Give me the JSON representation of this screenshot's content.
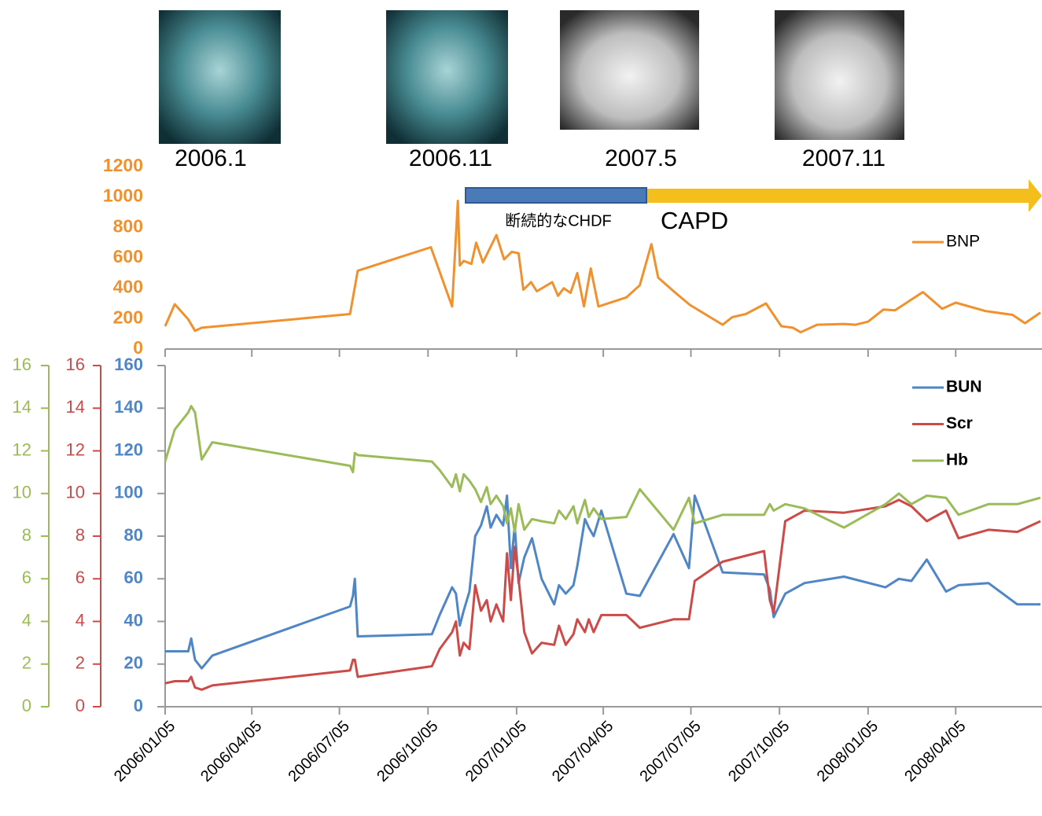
{
  "images": [
    {
      "label": "2006.1"
    },
    {
      "label": "2006.11"
    },
    {
      "label": "2007.5"
    },
    {
      "label": "2007.11"
    }
  ],
  "chart_data": [
    {
      "type": "line",
      "legend": "upper right",
      "annotations": [
        "断続的なCHDF",
        "CAPD"
      ],
      "xlim": [
        "2006/01/05",
        "2008/07/02"
      ],
      "ylim": [
        0,
        1200
      ],
      "yticks": [
        0,
        200,
        400,
        600,
        800,
        1000,
        1200
      ],
      "x": [
        "2006/01/05",
        "2006/01/15",
        "2006/01/29",
        "2006/02/05",
        "2006/02/12",
        "2006/07/16",
        "2006/07/24",
        "2006/10/08",
        "2006/10/30",
        "2006/11/05",
        "2006/11/07",
        "2006/11/11",
        "2006/11/19",
        "2006/11/24",
        "2006/12/01",
        "2006/12/15",
        "2006/12/23",
        "2006/12/31",
        "2007/01/07",
        "2007/01/12",
        "2007/01/20",
        "2007/01/26",
        "2007/02/11",
        "2007/02/17",
        "2007/02/23",
        "2007/03/02",
        "2007/03/09",
        "2007/03/16",
        "2007/03/23",
        "2007/03/31",
        "2007/04/29",
        "2007/05/13",
        "2007/05/25",
        "2007/06/01",
        "2007/06/19",
        "2007/07/04",
        "2007/08/07",
        "2007/08/17",
        "2007/08/31",
        "2007/09/21",
        "2007/10/07",
        "2007/10/19",
        "2007/10/27",
        "2007/11/13",
        "2007/12/11",
        "2007/12/23",
        "2008/01/05",
        "2008/01/21",
        "2008/02/02",
        "2008/03/02",
        "2008/03/22",
        "2008/04/05",
        "2008/05/06",
        "2008/06/03",
        "2008/06/16",
        "2008/07/02"
      ],
      "series": [
        {
          "name": "BNP",
          "color": "#f0912e",
          "values": [
            150,
            295,
            195,
            120,
            140,
            230,
            515,
            670,
            280,
            975,
            550,
            580,
            560,
            700,
            570,
            750,
            590,
            640,
            630,
            390,
            440,
            380,
            440,
            350,
            400,
            370,
            500,
            280,
            530,
            280,
            340,
            420,
            690,
            470,
            370,
            290,
            160,
            210,
            230,
            300,
            150,
            140,
            110,
            160,
            165,
            160,
            180,
            260,
            255,
            375,
            265,
            305,
            250,
            225,
            170,
            240
          ]
        }
      ]
    },
    {
      "type": "line",
      "legend": "upper right",
      "xlim": [
        "2006/01/05",
        "2008/07/02"
      ],
      "xticks": [
        "2006/01/05",
        "2006/04/05",
        "2006/07/05",
        "2006/10/05",
        "2007/01/05",
        "2007/04/05",
        "2007/07/05",
        "2007/10/05",
        "2008/01/05",
        "2008/04/05"
      ],
      "ylim": [
        0,
        160
      ],
      "yticks": [
        0,
        20,
        40,
        60,
        80,
        100,
        120,
        140,
        160
      ],
      "y2lim": [
        0,
        16
      ],
      "y2ticks": [
        0,
        2,
        4,
        6,
        8,
        10,
        12,
        14,
        16
      ],
      "y3lim": [
        0,
        16
      ],
      "y3ticks": [
        0,
        2,
        4,
        6,
        8,
        10,
        12,
        14,
        16
      ],
      "x": [
        "2006/01/05",
        "2006/01/15",
        "2006/01/29",
        "2006/02/01",
        "2006/02/05",
        "2006/02/12",
        "2006/02/23",
        "2006/07/16",
        "2006/07/19",
        "2006/07/21",
        "2006/07/24",
        "2006/10/09",
        "2006/10/17",
        "2006/10/30",
        "2006/11/03",
        "2006/11/07",
        "2006/11/11",
        "2006/11/17",
        "2006/11/23",
        "2006/11/29",
        "2006/12/05",
        "2006/12/09",
        "2006/12/15",
        "2006/12/22",
        "2006/12/26",
        "2006/12/30",
        "2007/01/03",
        "2007/01/07",
        "2007/01/13",
        "2007/01/21",
        "2007/01/31",
        "2007/02/13",
        "2007/02/18",
        "2007/02/25",
        "2007/03/05",
        "2007/03/09",
        "2007/03/17",
        "2007/03/21",
        "2007/03/26",
        "2007/04/03",
        "2007/04/29",
        "2007/05/13",
        "2007/06/17",
        "2007/07/03",
        "2007/07/09",
        "2007/08/07",
        "2007/09/19",
        "2007/09/25",
        "2007/09/29",
        "2007/10/11",
        "2007/10/31",
        "2007/12/11",
        "2008/01/23",
        "2008/02/06",
        "2008/02/19",
        "2008/03/06",
        "2008/03/26",
        "2008/04/08",
        "2008/05/09",
        "2008/06/08",
        "2008/07/02"
      ],
      "series": [
        {
          "name": "BUN",
          "color": "#4f86c6",
          "axis": "y",
          "values": [
            26,
            26,
            26,
            32,
            22,
            18,
            24,
            47,
            52,
            60,
            33,
            34,
            43,
            56,
            53,
            38,
            45,
            54,
            80,
            85,
            94,
            84,
            90,
            85,
            99,
            65,
            85,
            58,
            70,
            79,
            60,
            48,
            57,
            53,
            57,
            66,
            88,
            84,
            80,
            92,
            53,
            52,
            81,
            65,
            99,
            63,
            62,
            55,
            42,
            53,
            58,
            61,
            56,
            60,
            59,
            69,
            54,
            57,
            58,
            48,
            48
          ]
        },
        {
          "name": "Scr",
          "color": "#cc4b48",
          "axis": "y2",
          "values": [
            1.1,
            1.2,
            1.2,
            1.4,
            0.9,
            0.8,
            1.0,
            1.7,
            2.2,
            2.2,
            1.4,
            1.9,
            2.7,
            3.5,
            4.0,
            2.4,
            3.0,
            2.7,
            5.7,
            4.5,
            5.0,
            4.0,
            4.8,
            4.0,
            7.2,
            5.0,
            7.5,
            6.0,
            3.5,
            2.5,
            3.0,
            2.9,
            3.8,
            2.9,
            3.4,
            4.1,
            3.5,
            4.1,
            3.5,
            4.3,
            4.3,
            3.7,
            4.1,
            4.1,
            5.9,
            6.8,
            7.3,
            5.0,
            4.4,
            8.7,
            9.2,
            9.1,
            9.4,
            9.7,
            9.4,
            8.7,
            9.2,
            7.9,
            8.3,
            8.2,
            8.7
          ]
        },
        {
          "name": "Hb",
          "color": "#9bbb59",
          "axis": "y3",
          "values": [
            11.5,
            13.0,
            13.8,
            14.1,
            13.8,
            11.6,
            12.4,
            11.3,
            11.0,
            11.9,
            11.8,
            11.5,
            11.1,
            10.3,
            10.9,
            10.1,
            10.9,
            10.6,
            10.2,
            9.6,
            10.3,
            9.5,
            9.9,
            9.4,
            8.6,
            9.3,
            8.2,
            9.5,
            8.3,
            8.8,
            8.7,
            8.6,
            9.2,
            8.8,
            9.4,
            8.6,
            9.7,
            8.9,
            9.3,
            8.8,
            8.9,
            10.2,
            8.3,
            9.8,
            8.6,
            9.0,
            9.0,
            9.5,
            9.2,
            9.5,
            9.3,
            8.4,
            9.5,
            10.0,
            9.5,
            9.9,
            9.8,
            9.0,
            9.5,
            9.5,
            9.8
          ]
        }
      ]
    }
  ]
}
